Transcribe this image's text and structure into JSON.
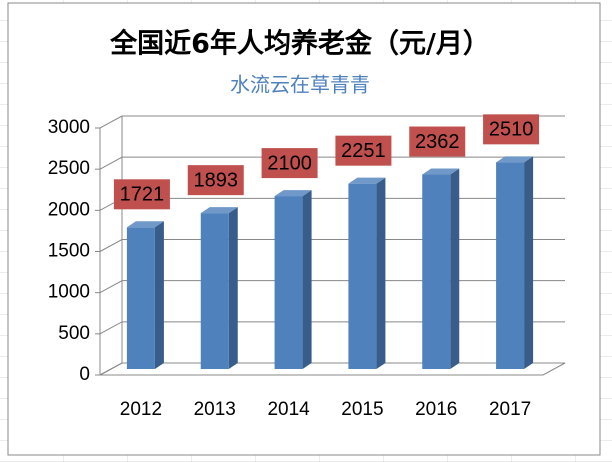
{
  "chart_data": {
    "type": "bar3d",
    "title": "全国近6年人均养老金（元/月）",
    "subtitle": "水流云在草青青",
    "categories": [
      "2012",
      "2013",
      "2014",
      "2015",
      "2016",
      "2017"
    ],
    "values": [
      1721,
      1893,
      2100,
      2251,
      2362,
      2510
    ],
    "color": "#4f81bd",
    "label_box_color": "#c0504d",
    "ylim": [
      0,
      3000
    ],
    "yticks": [
      0,
      500,
      1000,
      1500,
      2000,
      2500,
      3000
    ],
    "grid": true
  }
}
